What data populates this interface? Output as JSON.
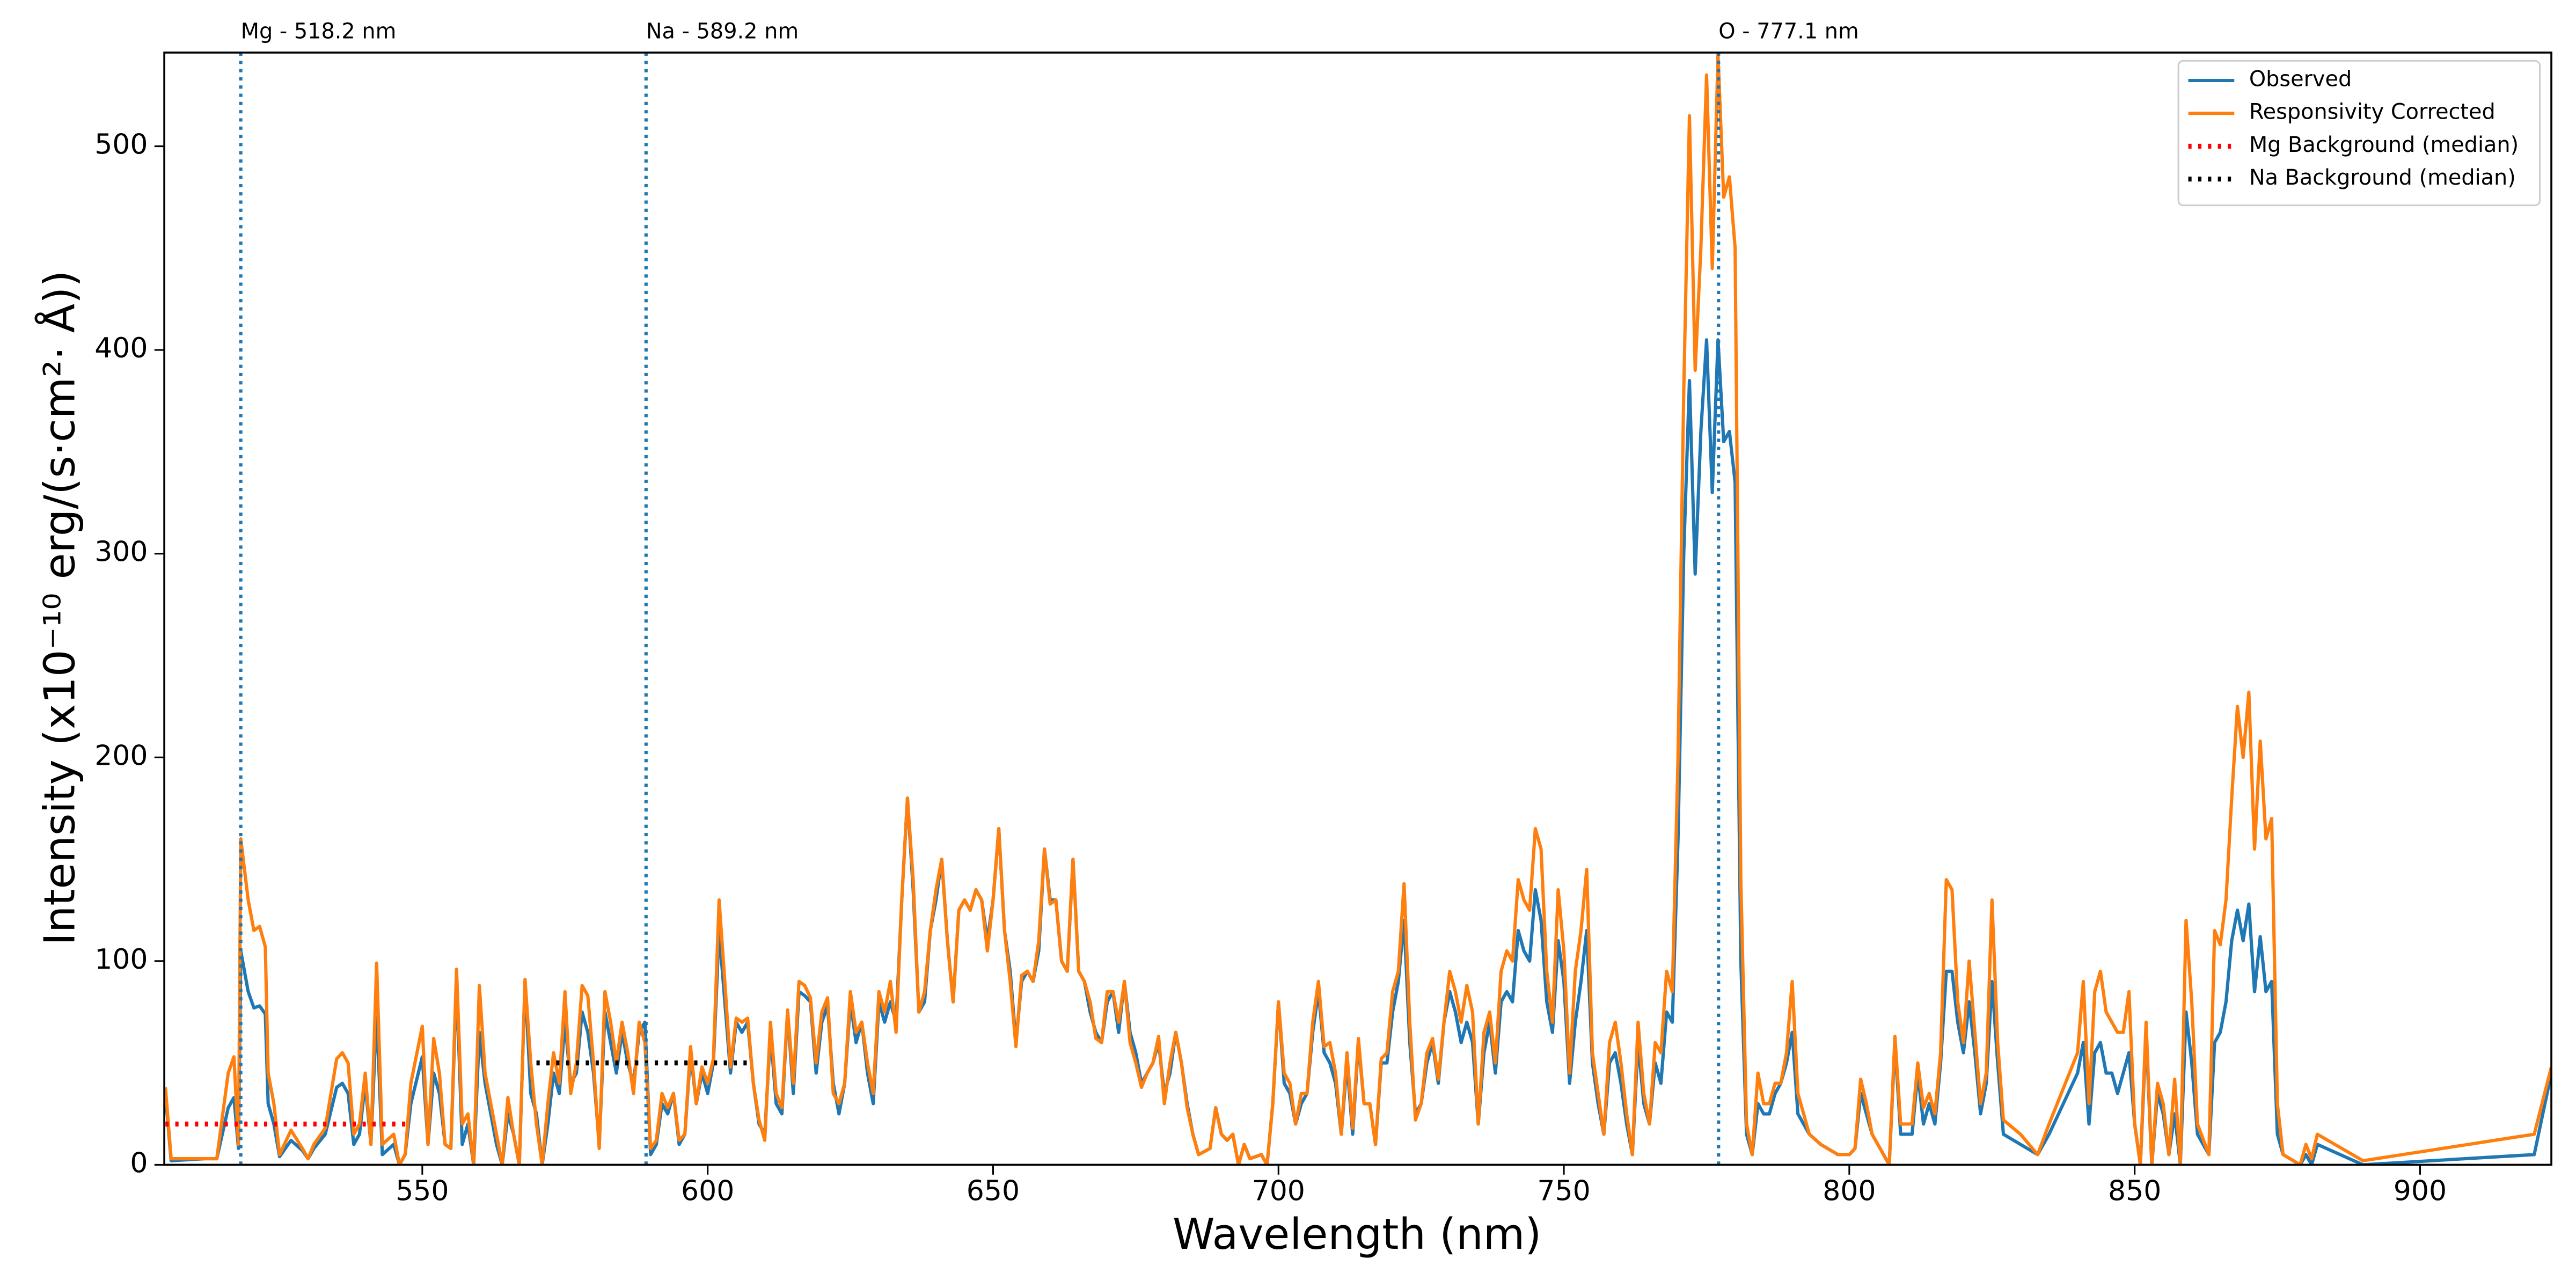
{
  "chart_data": {
    "type": "line",
    "xlabel": "Wavelength (nm)",
    "ylabel": "Intensity (x10⁻¹⁰ erg/(s·cm²· Å))",
    "xlim": [
      504.8,
      923
    ],
    "ylim": [
      0,
      546
    ],
    "xticks": [
      550,
      600,
      650,
      700,
      750,
      800,
      850,
      900
    ],
    "yticks": [
      0,
      100,
      200,
      300,
      400,
      500
    ],
    "legend": "upper right",
    "x": [
      505,
      506,
      512,
      514,
      516,
      517,
      517.8,
      518.2,
      519.5,
      520.5,
      521.5,
      522.5,
      523,
      524,
      525,
      527,
      529,
      530,
      531,
      533,
      535,
      536,
      537,
      538,
      539,
      540,
      541,
      542,
      543,
      545,
      546,
      547,
      548,
      550,
      551,
      552,
      553,
      554,
      555,
      556,
      557,
      558,
      559,
      560,
      561,
      563,
      564,
      565,
      566,
      567,
      568,
      569,
      570,
      571,
      572,
      573,
      574,
      575,
      576,
      577,
      578,
      579,
      580,
      581,
      582,
      583,
      584,
      585,
      586,
      587,
      588,
      589,
      590,
      591,
      592,
      593,
      594,
      595,
      596,
      597,
      598,
      599,
      600,
      601,
      602,
      603,
      604,
      605,
      606,
      607,
      608,
      609,
      610,
      611,
      612,
      613,
      614,
      615,
      616,
      617,
      618,
      619,
      620,
      621,
      622,
      623,
      624,
      625,
      626,
      627,
      628,
      629,
      630,
      631,
      632,
      633,
      634,
      635,
      636,
      637,
      638,
      639,
      640,
      641,
      642,
      643,
      644,
      645,
      646,
      647,
      648,
      649,
      650,
      651,
      652,
      653,
      654,
      655,
      656,
      657,
      658,
      659,
      660,
      661,
      662,
      663,
      664,
      665,
      666,
      667,
      668,
      669,
      670,
      671,
      672,
      673,
      674,
      675,
      676,
      677,
      678,
      679,
      680,
      681,
      682,
      683,
      684,
      685,
      686,
      688,
      689,
      690,
      691,
      692,
      693,
      694,
      695,
      697,
      698,
      699,
      700,
      701,
      702,
      703,
      704,
      705,
      706,
      707,
      708,
      709,
      710,
      711,
      712,
      713,
      714,
      715,
      716,
      717,
      718,
      719,
      720,
      721,
      722,
      723,
      724,
      725,
      726,
      727,
      728,
      729,
      730,
      731,
      732,
      733,
      734,
      735,
      736,
      737,
      738,
      739,
      740,
      741,
      742,
      743,
      744,
      745,
      746,
      747,
      748,
      749,
      750,
      751,
      752,
      753,
      754,
      755,
      756,
      757,
      758,
      759,
      760,
      761,
      762,
      763,
      764,
      765,
      766,
      767,
      768,
      769,
      770,
      771,
      772,
      773,
      774,
      775,
      776,
      777,
      778,
      779,
      780,
      781,
      782,
      783,
      784,
      785,
      786,
      787,
      788,
      789,
      790,
      791,
      793,
      795,
      798,
      800,
      801,
      802,
      803,
      804,
      805,
      806,
      807,
      808,
      809,
      811,
      812,
      813,
      814,
      815,
      816,
      817,
      818,
      819,
      820,
      821,
      822,
      823,
      824,
      825,
      826,
      827,
      830,
      833,
      835,
      840,
      841,
      842,
      843,
      844,
      845,
      846,
      847,
      848,
      849,
      850,
      851,
      852,
      853,
      854,
      855,
      856,
      857,
      858,
      859,
      860,
      861,
      863,
      864,
      865,
      866,
      867,
      868,
      869,
      870,
      871,
      872,
      873,
      874,
      875,
      876,
      879,
      880,
      881,
      882,
      890,
      920,
      923
    ],
    "series": [
      {
        "name": "Observed",
        "color": "#1f77b4",
        "style": "solid",
        "values": [
          35,
          2,
          3,
          3,
          28,
          33,
          8,
          105,
          85,
          77,
          78,
          74,
          30,
          20,
          4,
          12,
          7,
          3,
          8,
          15,
          38,
          40,
          35,
          10,
          15,
          40,
          10,
          75,
          5,
          10,
          0,
          5,
          30,
          53,
          10,
          45,
          35,
          10,
          8,
          90,
          10,
          20,
          0,
          65,
          40,
          10,
          0,
          25,
          15,
          0,
          90,
          35,
          25,
          0,
          20,
          45,
          35,
          70,
          40,
          45,
          75,
          65,
          45,
          10,
          75,
          60,
          45,
          65,
          50,
          40,
          65,
          70,
          5,
          10,
          30,
          25,
          35,
          10,
          15,
          55,
          30,
          45,
          35,
          50,
          115,
          80,
          45,
          70,
          65,
          70,
          40,
          20,
          15,
          65,
          30,
          25,
          75,
          35,
          85,
          83,
          80,
          45,
          70,
          78,
          40,
          25,
          40,
          80,
          60,
          70,
          45,
          30,
          80,
          70,
          80,
          70,
          130,
          180,
          135,
          75,
          80,
          115,
          130,
          150,
          110,
          80,
          125,
          130,
          125,
          135,
          130,
          110,
          130,
          165,
          115,
          95,
          60,
          90,
          95,
          90,
          105,
          155,
          130,
          130,
          100,
          95,
          150,
          95,
          90,
          75,
          65,
          60,
          80,
          85,
          65,
          90,
          65,
          55,
          40,
          45,
          50,
          60,
          35,
          45,
          65,
          50,
          30,
          15,
          5,
          8,
          28,
          15,
          12,
          15,
          0,
          10,
          3,
          5,
          0,
          30,
          80,
          40,
          35,
          20,
          30,
          35,
          65,
          85,
          55,
          50,
          40,
          15,
          50,
          15,
          60,
          30,
          30,
          10,
          50,
          50,
          75,
          90,
          120,
          60,
          25,
          30,
          50,
          60,
          40,
          70,
          85,
          75,
          60,
          70,
          60,
          20,
          55,
          70,
          45,
          80,
          85,
          80,
          115,
          105,
          100,
          135,
          120,
          80,
          65,
          110,
          90,
          40,
          70,
          90,
          115,
          50,
          30,
          15,
          50,
          55,
          40,
          20,
          5,
          60,
          30,
          20,
          50,
          40,
          75,
          70,
          160,
          300,
          385,
          290,
          360,
          405,
          330,
          405,
          355,
          360,
          335,
          100,
          15,
          5,
          30,
          25,
          25,
          35,
          40,
          50,
          65,
          25,
          15,
          10,
          5,
          5,
          8,
          35,
          25,
          15,
          10,
          5,
          0,
          60,
          15,
          15,
          45,
          20,
          30,
          20,
          50,
          95,
          95,
          70,
          55,
          80,
          55,
          25,
          40,
          90,
          50,
          15,
          10,
          5,
          15,
          45,
          60,
          20,
          55,
          60,
          45,
          45,
          35,
          45,
          55,
          20,
          0,
          65,
          0,
          35,
          25,
          5,
          25,
          0,
          75,
          50,
          15,
          5,
          60,
          65,
          80,
          110,
          125,
          110,
          128,
          85,
          112,
          85,
          90,
          15,
          5,
          0,
          5,
          0,
          10,
          0,
          5,
          45
        ]
      },
      {
        "name": "Responsivity Corrected",
        "color": "#ff7f0e",
        "style": "solid",
        "values": [
          38,
          3,
          3,
          3,
          45,
          53,
          10,
          160,
          130,
          115,
          117,
          107,
          45,
          30,
          5,
          17,
          8,
          3,
          10,
          18,
          52,
          55,
          50,
          15,
          20,
          45,
          10,
          99,
          10,
          15,
          0,
          5,
          40,
          68,
          10,
          62,
          45,
          10,
          8,
          96,
          20,
          25,
          0,
          88,
          45,
          15,
          0,
          33,
          15,
          0,
          91,
          50,
          20,
          0,
          30,
          55,
          40,
          85,
          35,
          50,
          88,
          83,
          50,
          8,
          85,
          70,
          50,
          70,
          55,
          35,
          70,
          60,
          8,
          12,
          35,
          28,
          35,
          12,
          15,
          58,
          30,
          48,
          40,
          52,
          130,
          90,
          48,
          72,
          70,
          72,
          40,
          22,
          12,
          70,
          35,
          28,
          76,
          40,
          90,
          88,
          82,
          50,
          75,
          82,
          35,
          30,
          40,
          85,
          65,
          70,
          50,
          35,
          85,
          75,
          90,
          65,
          130,
          180,
          140,
          75,
          85,
          115,
          135,
          150,
          110,
          80,
          125,
          130,
          125,
          135,
          130,
          105,
          130,
          165,
          115,
          90,
          58,
          93,
          95,
          90,
          110,
          155,
          128,
          130,
          100,
          95,
          150,
          95,
          90,
          80,
          62,
          60,
          85,
          85,
          70,
          90,
          60,
          50,
          38,
          45,
          50,
          63,
          30,
          50,
          65,
          50,
          28,
          15,
          5,
          8,
          28,
          15,
          12,
          15,
          0,
          10,
          3,
          5,
          0,
          30,
          80,
          45,
          40,
          20,
          35,
          35,
          70,
          90,
          58,
          60,
          45,
          15,
          55,
          18,
          62,
          30,
          30,
          10,
          52,
          55,
          85,
          95,
          138,
          70,
          22,
          30,
          55,
          62,
          42,
          70,
          95,
          85,
          70,
          88,
          75,
          20,
          65,
          75,
          50,
          95,
          105,
          100,
          140,
          130,
          125,
          165,
          155,
          95,
          70,
          135,
          105,
          45,
          95,
          115,
          145,
          55,
          35,
          15,
          60,
          70,
          50,
          25,
          5,
          70,
          35,
          20,
          60,
          55,
          95,
          85,
          200,
          380,
          515,
          390,
          450,
          535,
          440,
          545,
          475,
          485,
          450,
          140,
          20,
          5,
          45,
          30,
          30,
          40,
          40,
          55,
          90,
          35,
          15,
          10,
          5,
          5,
          8,
          42,
          30,
          15,
          10,
          5,
          0,
          63,
          20,
          20,
          50,
          28,
          35,
          25,
          55,
          140,
          135,
          80,
          60,
          100,
          65,
          30,
          45,
          130,
          60,
          22,
          15,
          5,
          20,
          55,
          90,
          30,
          85,
          95,
          75,
          70,
          65,
          65,
          85,
          20,
          0,
          70,
          0,
          40,
          30,
          5,
          42,
          0,
          120,
          80,
          20,
          5,
          115,
          108,
          130,
          180,
          225,
          200,
          232,
          155,
          208,
          160,
          170,
          30,
          5,
          0,
          10,
          3,
          15,
          2,
          15,
          48
        ]
      },
      {
        "name": "Mg Background (median)",
        "color": "#ff0000",
        "style": "dotted",
        "x": [
          505,
          548
        ],
        "values": [
          20,
          20
        ]
      },
      {
        "name": "Na Background (median)",
        "color": "#000000",
        "style": "dotted",
        "x": [
          570,
          607
        ],
        "values": [
          50,
          50
        ]
      }
    ],
    "annotations": [
      {
        "label": "Mg - 518.2 nm",
        "x": 518.2,
        "color": "#1f77b4"
      },
      {
        "label": "Na - 589.2 nm",
        "x": 589.2,
        "color": "#1f77b4"
      },
      {
        "label": "O - 777.1 nm",
        "x": 777.1,
        "color": "#1f77b4"
      }
    ]
  }
}
